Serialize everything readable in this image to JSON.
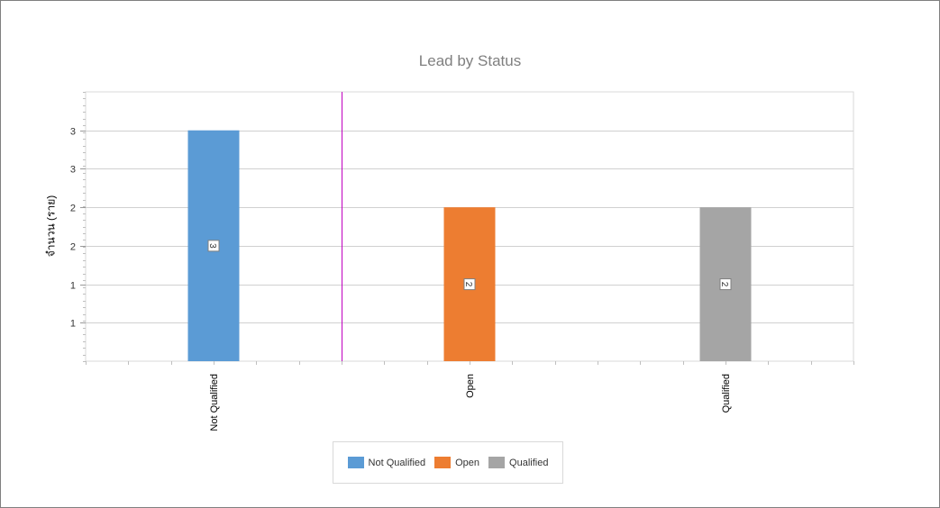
{
  "chart_data": {
    "type": "bar",
    "title": "Lead by Status",
    "ylabel": "จำนวน (ราย)",
    "xlabel": "",
    "categories": [
      "Not Qualified",
      "Open",
      "Qualified"
    ],
    "series": [
      {
        "name": "Not Qualified",
        "category": "Not Qualified",
        "value": 3,
        "label": "3",
        "color": "#5b9bd5"
      },
      {
        "name": "Open",
        "category": "Open",
        "value": 2,
        "label": "2",
        "color": "#ed7d31"
      },
      {
        "name": "Qualified",
        "category": "Qualified",
        "value": 2,
        "label": "2",
        "color": "#a5a5a5"
      }
    ],
    "ylim": [
      0,
      3.5
    ],
    "ytick_values": [
      0.5,
      1,
      1.5,
      2,
      2.5,
      3
    ],
    "ytick_labels": [
      "1",
      "1",
      "2",
      "2",
      "3",
      "3"
    ],
    "grid": true,
    "legend_position": "bottom-center",
    "reference_line": {
      "position": "between Not Qualified and Open",
      "color": "#c000c0"
    }
  }
}
